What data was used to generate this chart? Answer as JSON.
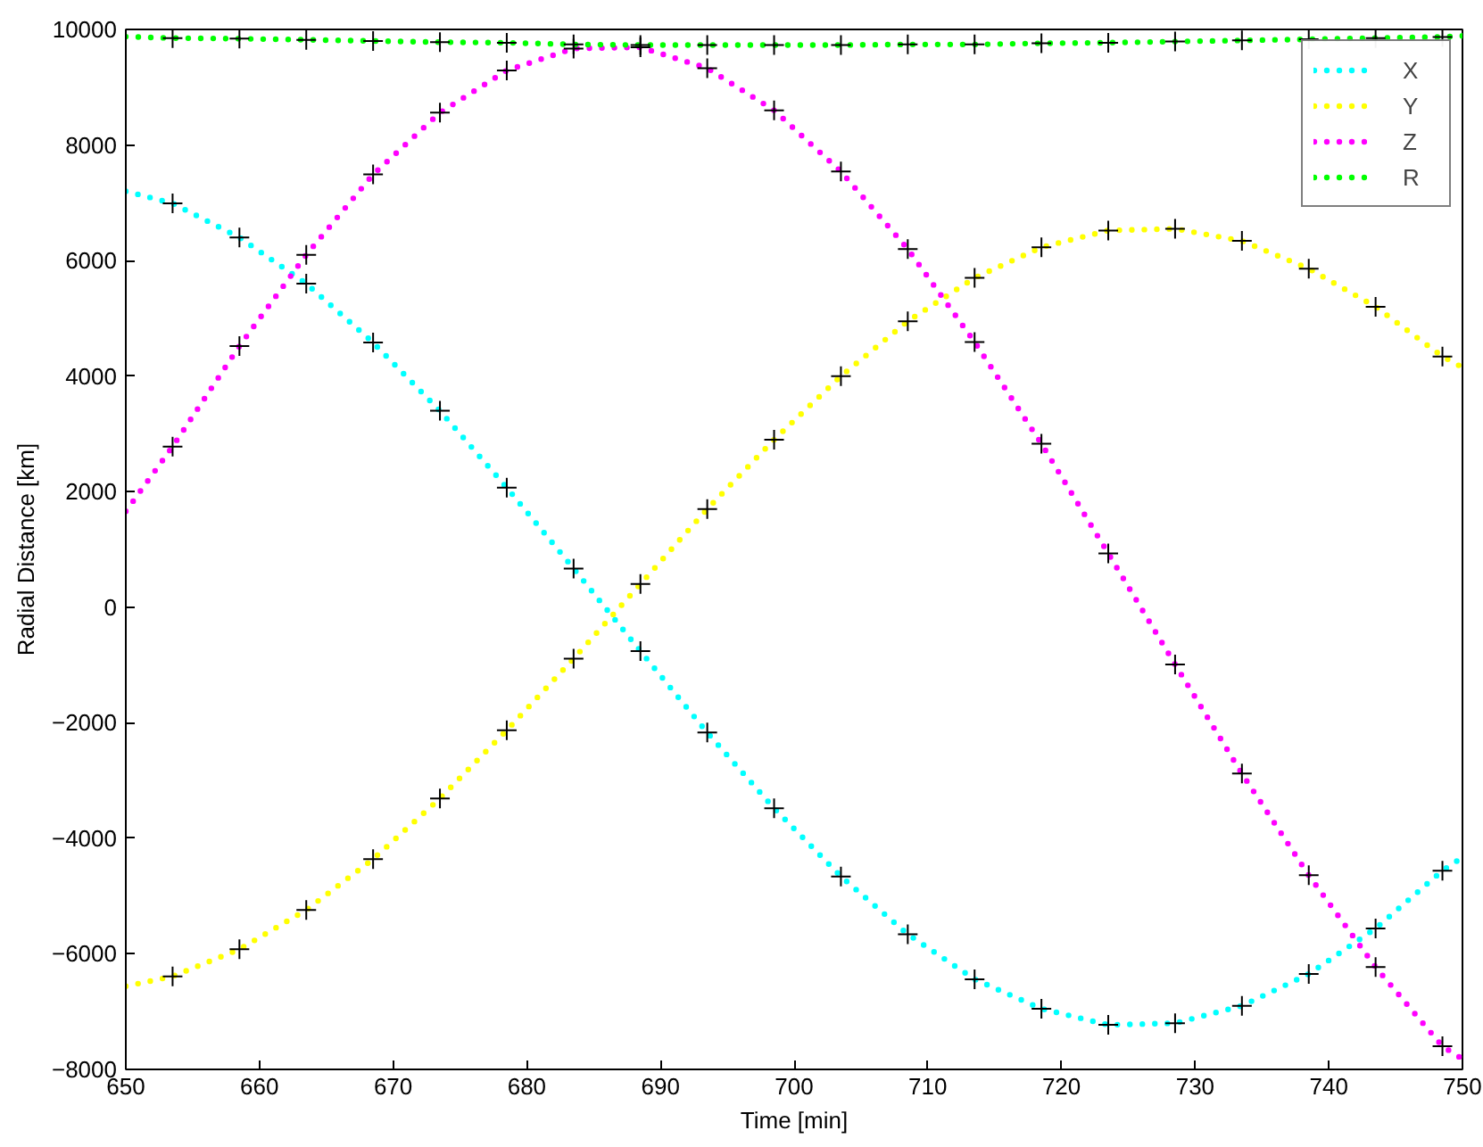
{
  "chart_data": {
    "type": "line",
    "xlabel": "Time [min]",
    "ylabel": "Radial Distance [km]",
    "xlim": [
      650,
      750
    ],
    "ylim": [
      -8000,
      10000
    ],
    "xticks": [
      650,
      660,
      670,
      680,
      690,
      700,
      710,
      720,
      730,
      740,
      750
    ],
    "yticks": [
      -8000,
      -6000,
      -4000,
      -2000,
      0,
      2000,
      4000,
      6000,
      8000,
      10000
    ],
    "grid": false,
    "legend": "top right",
    "line_style": "dotted",
    "series": [
      {
        "name": "X",
        "color": "#00ffff",
        "x": [
          650,
          653.5,
          658.5,
          663.5,
          668.5,
          673.5,
          678.5,
          683.5,
          688.5,
          693.5,
          698.5,
          703.5,
          708.5,
          713.5,
          718.5,
          723.5,
          728.5,
          733.5,
          738.5,
          743.5,
          748.5,
          750
        ],
        "values": [
          7200,
          6990,
          6400,
          5600,
          4580,
          3400,
          2070,
          670,
          -760,
          -2170,
          -3480,
          -4660,
          -5660,
          -6440,
          -6950,
          -7230,
          -7200,
          -6900,
          -6350,
          -5560,
          -4560,
          -4330
        ]
      },
      {
        "name": "Y",
        "color": "#ffff00",
        "x": [
          650,
          653.5,
          658.5,
          663.5,
          668.5,
          673.5,
          678.5,
          683.5,
          688.5,
          693.5,
          698.5,
          703.5,
          708.5,
          713.5,
          718.5,
          723.5,
          728.5,
          733.5,
          738.5,
          743.5,
          748.5,
          750
        ],
        "values": [
          -6560,
          -6390,
          -5920,
          -5240,
          -4360,
          -3310,
          -2130,
          -890,
          400,
          1700,
          2900,
          4000,
          4950,
          5700,
          6230,
          6520,
          6550,
          6340,
          5860,
          5200,
          4340,
          4150
        ]
      },
      {
        "name": "Z",
        "color": "#ff00ff",
        "x": [
          650,
          653.5,
          658.5,
          663.5,
          668.5,
          673.5,
          678.5,
          683.5,
          688.5,
          693.5,
          698.5,
          703.5,
          708.5,
          713.5,
          718.5,
          723.5,
          728.5,
          733.5,
          738.5,
          743.5,
          748.5,
          750
        ],
        "values": [
          1660,
          2780,
          4520,
          6100,
          7490,
          8560,
          9290,
          9670,
          9690,
          9330,
          8600,
          7540,
          6200,
          4590,
          2830,
          930,
          -990,
          -2880,
          -4640,
          -6230,
          -7600,
          -7820
        ]
      },
      {
        "name": "R",
        "color": "#00ff00",
        "x": [
          650,
          653.5,
          658.5,
          663.5,
          668.5,
          673.5,
          678.5,
          683.5,
          688.5,
          693.5,
          698.5,
          703.5,
          708.5,
          713.5,
          718.5,
          723.5,
          728.5,
          733.5,
          738.5,
          743.5,
          748.5,
          750
        ],
        "values": [
          9875,
          9850,
          9840,
          9820,
          9800,
          9780,
          9770,
          9740,
          9730,
          9730,
          9730,
          9730,
          9740,
          9740,
          9760,
          9770,
          9790,
          9810,
          9830,
          9850,
          9870,
          9890
        ]
      },
      {
        "type": "scatter",
        "marker": "cross",
        "color": "#000000",
        "x": [
          653.5,
          658.5,
          663.5,
          668.5,
          673.5,
          678.5,
          683.5,
          688.5,
          693.5,
          698.5,
          703.5,
          708.5,
          713.5,
          718.5,
          723.5,
          728.5,
          733.5,
          738.5,
          743.5,
          748.5
        ],
        "values": [
          6990,
          6400,
          5600,
          4580,
          3400,
          2070,
          670,
          -760,
          -2170,
          -3480,
          -4660,
          -5660,
          -6440,
          -6950,
          -7230,
          -7200,
          -6900,
          -6350,
          -5560,
          -4560
        ]
      },
      {
        "type": "scatter",
        "marker": "cross",
        "color": "#000000",
        "x": [
          653.5,
          658.5,
          663.5,
          668.5,
          673.5,
          678.5,
          683.5,
          688.5,
          693.5,
          698.5,
          703.5,
          708.5,
          713.5,
          718.5,
          723.5,
          728.5,
          733.5,
          738.5,
          743.5,
          748.5
        ],
        "values": [
          -6390,
          -5920,
          -5240,
          -4360,
          -3310,
          -2130,
          -890,
          400,
          1700,
          2900,
          4000,
          4950,
          5700,
          6230,
          6520,
          6550,
          6340,
          5860,
          5200,
          4340
        ]
      },
      {
        "type": "scatter",
        "marker": "cross",
        "color": "#000000",
        "x": [
          653.5,
          658.5,
          663.5,
          668.5,
          673.5,
          678.5,
          683.5,
          688.5,
          693.5,
          698.5,
          703.5,
          708.5,
          713.5,
          718.5,
          723.5,
          728.5,
          733.5,
          738.5,
          743.5,
          748.5
        ],
        "values": [
          2780,
          4520,
          6100,
          7490,
          8560,
          9290,
          9670,
          9690,
          9330,
          8600,
          7540,
          6200,
          4590,
          2830,
          930,
          -990,
          -2880,
          -4640,
          -6230,
          -7600
        ]
      },
      {
        "type": "scatter",
        "marker": "cross",
        "color": "#000000",
        "x": [
          653.5,
          658.5,
          663.5,
          668.5,
          673.5,
          678.5,
          683.5,
          688.5,
          693.5,
          698.5,
          703.5,
          708.5,
          713.5,
          718.5,
          723.5,
          728.5,
          733.5,
          738.5,
          743.5,
          748.5
        ],
        "values": [
          9850,
          9840,
          9820,
          9800,
          9780,
          9770,
          9740,
          9730,
          9730,
          9730,
          9730,
          9740,
          9740,
          9760,
          9770,
          9790,
          9810,
          9830,
          9850,
          9870
        ]
      }
    ]
  }
}
